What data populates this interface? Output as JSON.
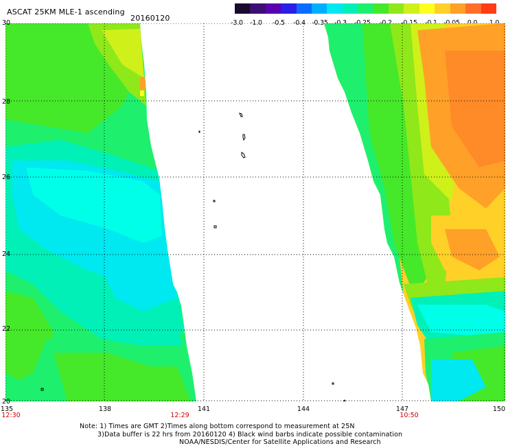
{
  "header": {
    "title": "ASCAT 25KM MLE-1 ascending",
    "date": "20160120"
  },
  "colorbar": {
    "colors": [
      "#1a0a2e",
      "#3d0f73",
      "#5a00b0",
      "#2a1ee8",
      "#0a6cff",
      "#00b0ff",
      "#00e8f0",
      "#00f0b8",
      "#1ef06e",
      "#46e82a",
      "#8ee81a",
      "#d0f01a",
      "#ffff1e",
      "#ffd028",
      "#ffa028",
      "#ff6e28",
      "#ff3c14"
    ],
    "labels": [
      "-3.0",
      "-1.0",
      "-0.5",
      "-0.4",
      "-0.35",
      "-0.3",
      "-0.25",
      "-0.2",
      "-0.15",
      "-0.1",
      "-0.05",
      "0.0",
      "1.0"
    ]
  },
  "axes": {
    "lat_labels": [
      "30",
      "28",
      "26",
      "24",
      "22",
      "20"
    ],
    "lon_labels": [
      "135",
      "138",
      "141",
      "144",
      "147",
      "150"
    ]
  },
  "times": {
    "t1": "12:30",
    "t2": "12:29",
    "t3": "10:50"
  },
  "notes": {
    "line1": "Note: 1) Times are GMT 2)Times along bottom correspond to measurement at 25N",
    "line2": "3)Data buffer is 22 hrs from 20160120 4) Black wind barbs indicate possible contamination",
    "line3": "NOAA/NESDIS/Center for Satellite Applications and Research"
  }
}
